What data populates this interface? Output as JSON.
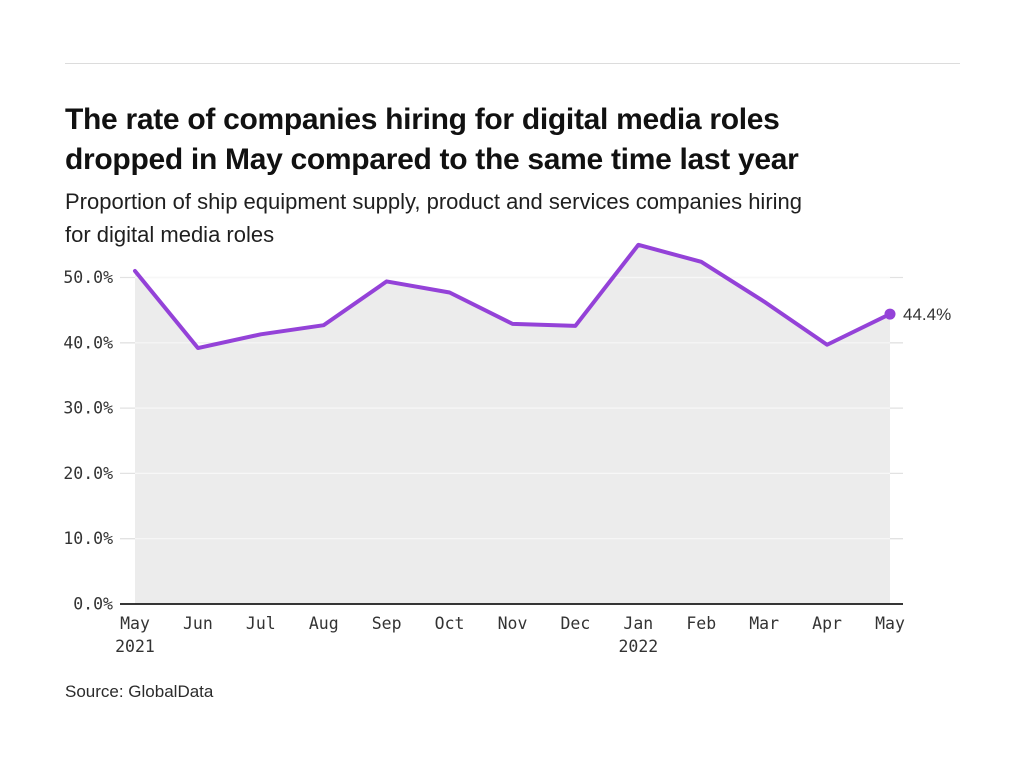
{
  "header": {
    "title_lines": [
      "The rate of companies hiring for digital media roles",
      "dropped in May compared to the same time last year"
    ],
    "subtitle_lines": [
      "Proportion of ship equipment supply, product and services companies hiring",
      "for digital media roles"
    ]
  },
  "footer": {
    "source": "Source: GlobalData"
  },
  "chart_data": {
    "type": "line",
    "title": "The rate of companies hiring for digital media roles dropped in May compared to the same time last year",
    "subtitle": "Proportion of ship equipment supply, product and services companies hiring for digital media roles",
    "months": [
      "May",
      "Jun",
      "Jul",
      "Aug",
      "Sep",
      "Oct",
      "Nov",
      "Dec",
      "Jan",
      "Feb",
      "Mar",
      "Apr",
      "May"
    ],
    "years": [
      {
        "index": 0,
        "label": "2021"
      },
      {
        "index": 8,
        "label": "2022"
      }
    ],
    "values": [
      51.0,
      39.2,
      41.3,
      42.7,
      49.4,
      47.7,
      42.9,
      42.6,
      55.0,
      52.4,
      46.3,
      39.7,
      44.4
    ],
    "unit": "%",
    "y_ticks": [
      "0.0%",
      "10.0%",
      "20.0%",
      "30.0%",
      "40.0%",
      "50.0%"
    ],
    "ylim": [
      0,
      55
    ],
    "grid": "horizontal",
    "legend": "none",
    "end_label": "44.4%",
    "source": "GlobalData",
    "colors": {
      "line": "#9442d8",
      "area": "#ececec",
      "grid": "#e2e2e2",
      "grid_over_area": "#f7f7f7",
      "axis": "#1a1a1a",
      "tick_text": "#333333",
      "label_text": "#333333"
    }
  }
}
